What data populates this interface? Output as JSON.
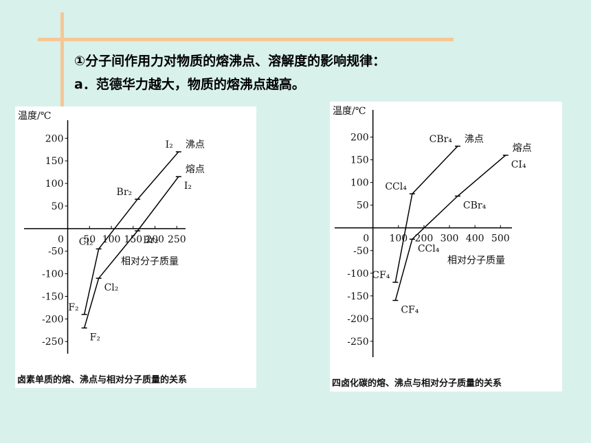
{
  "text": {
    "line1": "①分子间作用力对物质的熔沸点、溶解度的影响规律：",
    "line2": "a．范德华力越大，物质的熔沸点越高。"
  },
  "chart_data": [
    {
      "type": "line",
      "title": "卤素单质的熔、沸点与相对分子质量的关系",
      "y_label": "温度/℃",
      "x_label": "相对分子质量",
      "x": [
        38,
        71,
        160,
        254
      ],
      "xlim": [
        -100,
        270
      ],
      "ylim": [
        -277,
        240
      ],
      "xticks": [
        0,
        50,
        100,
        150,
        200,
        250
      ],
      "yticks": [
        200,
        150,
        100,
        50,
        -50,
        -100,
        -150,
        -200,
        -250
      ],
      "series": [
        {
          "name": "沸点",
          "color": "#000000",
          "values": [
            -190,
            -45,
            65,
            170
          ],
          "labels": [
            "F₂",
            "Cl₂",
            "Br₂",
            "I₂"
          ]
        },
        {
          "name": "熔点",
          "color": "#000000",
          "values": [
            -220,
            -110,
            -5,
            115
          ],
          "labels": [
            "F₂",
            "Cl₂",
            "Br₂",
            "I₂"
          ]
        }
      ]
    },
    {
      "type": "line",
      "title": "四卤化碳的熔、沸点与相对分子质量的关系",
      "y_label": "温度/℃",
      "x_label": "相对分子质量",
      "x": [
        88,
        154,
        332,
        520
      ],
      "xlim": [
        -150,
        545
      ],
      "ylim": [
        -285,
        260
      ],
      "xticks": [
        0,
        100,
        200,
        300,
        400,
        500
      ],
      "yticks": [
        200,
        150,
        100,
        50,
        -50,
        -100,
        -150,
        -200,
        -250
      ],
      "series": [
        {
          "name": "沸点",
          "color": "#000000",
          "values": [
            -120,
            75,
            180,
            null
          ],
          "labels": [
            "CF₄",
            "CCl₄",
            "CBr₄",
            null
          ]
        },
        {
          "name": "熔点",
          "color": "#000000",
          "values": [
            -160,
            -25,
            70,
            160
          ],
          "labels": [
            "CF₄",
            "CCl₄",
            "CBr₄",
            "CI₄"
          ]
        }
      ]
    }
  ]
}
